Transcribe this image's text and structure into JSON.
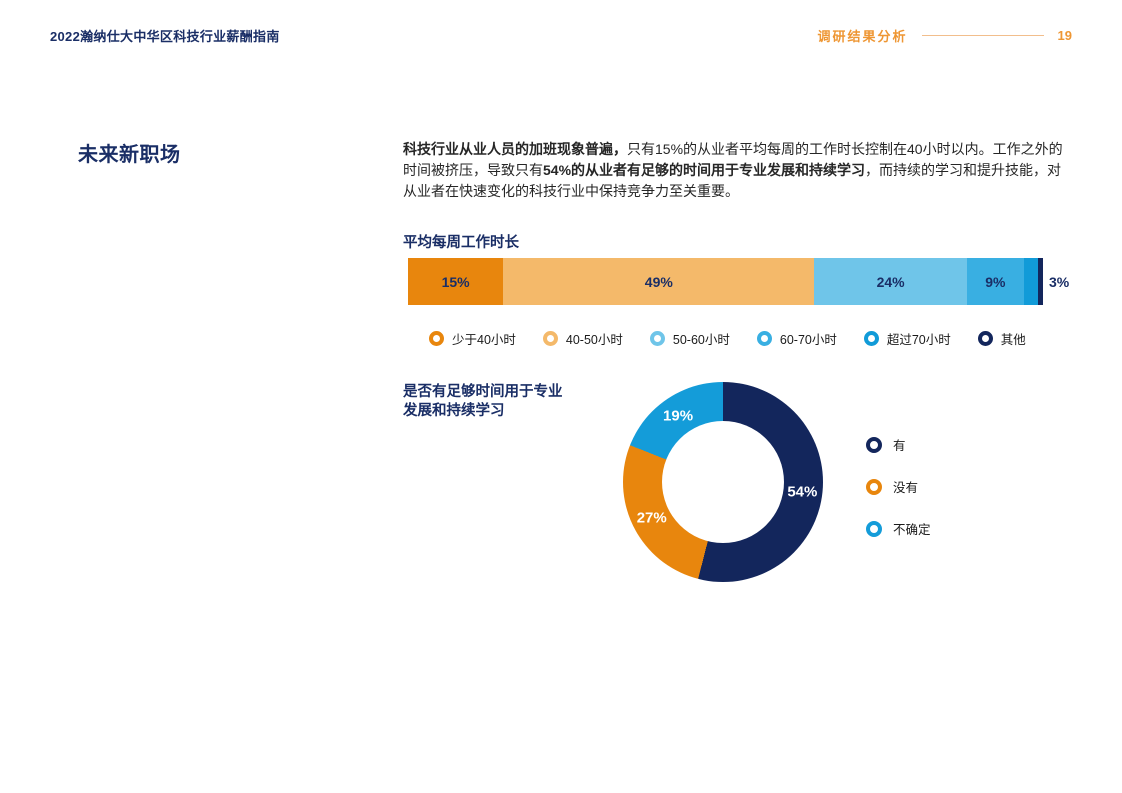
{
  "header": {
    "title": "2022瀚纳仕大中华区科技行业薪酬指南",
    "section": "调研结果分析",
    "page_number": "19"
  },
  "section": {
    "title": "未来新职场"
  },
  "paragraph": {
    "segments": [
      {
        "text": "科技行业从业人员的加班现象普遍，",
        "bold": true
      },
      {
        "text": "只有15%的从业者平均每周的工作时长控制在40小时以内。工作之外的时间被挤压，导致只有",
        "bold": false
      },
      {
        "text": "54%的从业者有足够的时间用于专业发展和持续学习",
        "bold": true
      },
      {
        "text": "，而持续的学习和提升技能，对从业者在快速变化的科技行业中保持竞争力至关重要。",
        "bold": false
      }
    ]
  },
  "chart_data": [
    {
      "type": "bar",
      "variant": "stacked-horizontal",
      "title": "平均每周工作时长",
      "categories": [
        "少于40小时",
        "40-50小时",
        "50-60小时",
        "60-70小时",
        "超过70小时",
        "其他"
      ],
      "values": [
        15,
        49,
        24,
        9,
        2.2,
        0.8
      ],
      "labels": [
        "15%",
        "49%",
        "24%",
        "9%",
        "",
        ""
      ],
      "outside_label": "3%",
      "colors": [
        "#E8860D",
        "#F4B96A",
        "#6FC5E9",
        "#39AFE2",
        "#119BD8",
        "#13265C"
      ],
      "legend_position": "bottom",
      "label_color": "#1A2E66"
    },
    {
      "type": "pie",
      "variant": "donut",
      "title": "是否有足够时间用于专业发展和持续学习",
      "title_lines": [
        "是否有足够时间用于专业",
        "发展和持续学习"
      ],
      "categories": [
        "有",
        "没有",
        "不确定"
      ],
      "values": [
        54,
        27,
        19
      ],
      "labels": [
        "54%",
        "27%",
        "19%"
      ],
      "colors": [
        "#13265C",
        "#E8860D",
        "#149CD9"
      ],
      "legend_position": "right",
      "label_color": "#ffffff",
      "label_radius": 80
    }
  ],
  "theme": {
    "navy": "#1A2E66",
    "orange": "#E8860D",
    "header_orange": "#EE9633",
    "header_line": "#F2BE8C",
    "body_text": "#262626"
  }
}
